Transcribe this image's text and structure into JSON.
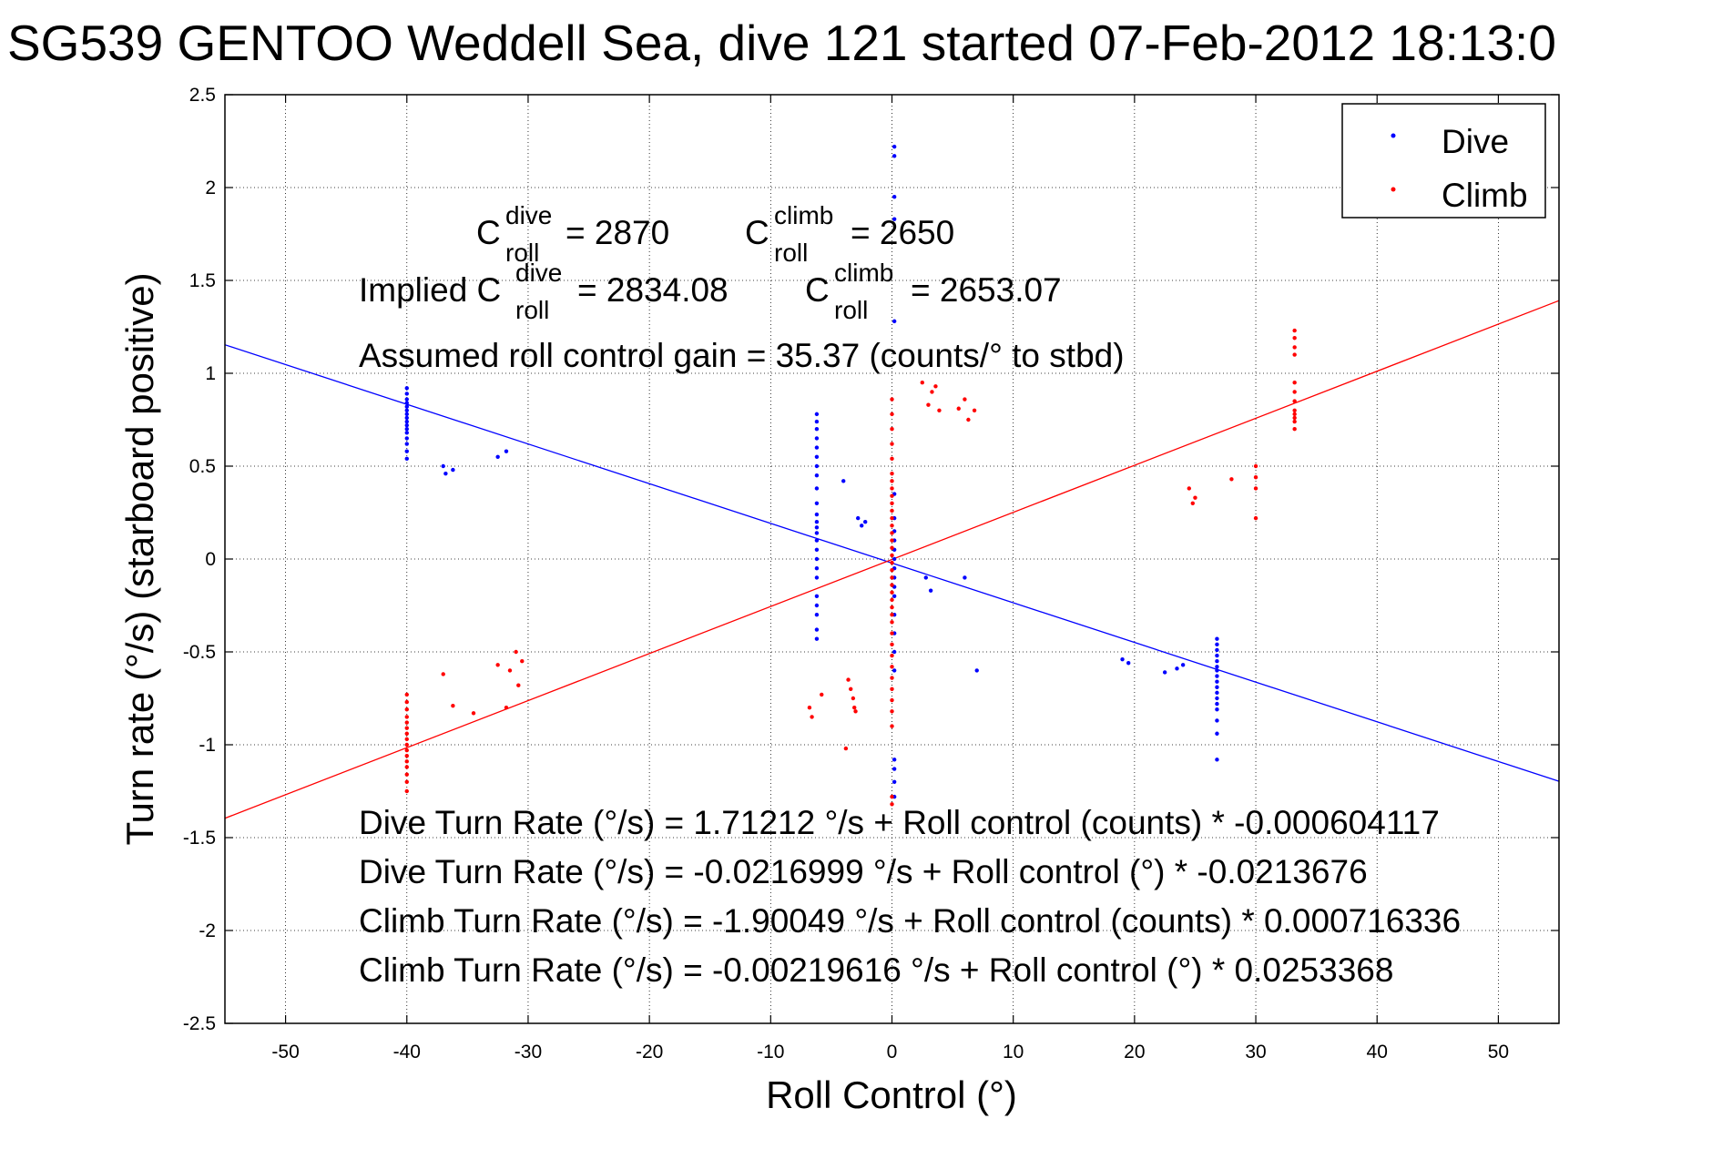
{
  "chart_data": {
    "type": "scatter",
    "title": "SG539 GENTOO Weddell Sea, dive 121 started 07-Feb-2012 18:13:0",
    "xlabel": "Roll Control (°)",
    "ylabel": "Turn rate (°/s)  (starboard positive)",
    "xlim": [
      -55,
      55
    ],
    "ylim": [
      -2.5,
      2.5
    ],
    "xticks": [
      -50,
      -40,
      -30,
      -20,
      -10,
      0,
      10,
      20,
      30,
      40,
      50
    ],
    "yticks": [
      2.5,
      2,
      1.5,
      1,
      0.5,
      0,
      -0.5,
      -1,
      -1.5,
      -2,
      -2.5
    ],
    "xtick_labels": [
      "-50",
      "-40",
      "-30",
      "-20",
      "-10",
      "0",
      "10",
      "20",
      "30",
      "40",
      "50"
    ],
    "ytick_labels": [
      "2.5",
      "2",
      "1.5",
      "1",
      "0.5",
      "0",
      "-0.5",
      "-1",
      "-1.5",
      "-2",
      "-2.5"
    ],
    "grid": true,
    "legend_position": "top-right",
    "series": [
      {
        "name": "Dive",
        "color": "#0000ff",
        "points": [
          [
            -40,
            0.92
          ],
          [
            -40,
            0.89
          ],
          [
            -40,
            0.86
          ],
          [
            -40,
            0.84
          ],
          [
            -40,
            0.82
          ],
          [
            -40,
            0.8
          ],
          [
            -40,
            0.78
          ],
          [
            -40,
            0.76
          ],
          [
            -40,
            0.74
          ],
          [
            -40,
            0.72
          ],
          [
            -40,
            0.7
          ],
          [
            -40,
            0.68
          ],
          [
            -40,
            0.65
          ],
          [
            -40,
            0.62
          ],
          [
            -40,
            0.58
          ],
          [
            -40,
            0.54
          ],
          [
            -37,
            0.5
          ],
          [
            -36.8,
            0.46
          ],
          [
            -36.2,
            0.48
          ],
          [
            -32.5,
            0.55
          ],
          [
            -31.8,
            0.58
          ],
          [
            -6.2,
            0.78
          ],
          [
            -6.2,
            0.74
          ],
          [
            -6.2,
            0.7
          ],
          [
            -6.2,
            0.65
          ],
          [
            -6.2,
            0.6
          ],
          [
            -6.2,
            0.55
          ],
          [
            -6.2,
            0.5
          ],
          [
            -6.2,
            0.45
          ],
          [
            -6.2,
            0.38
          ],
          [
            -6.2,
            0.3
          ],
          [
            -6.2,
            0.24
          ],
          [
            -6.2,
            0.2
          ],
          [
            -6.2,
            0.17
          ],
          [
            -6.2,
            0.14
          ],
          [
            -6.2,
            0.1
          ],
          [
            -6.2,
            0.05
          ],
          [
            -6.2,
            0.0
          ],
          [
            -6.2,
            -0.05
          ],
          [
            -6.2,
            -0.1
          ],
          [
            -6.2,
            -0.2
          ],
          [
            -6.2,
            -0.25
          ],
          [
            -6.2,
            -0.3
          ],
          [
            -6.2,
            -0.38
          ],
          [
            -6.2,
            -0.43
          ],
          [
            -4,
            0.42
          ],
          [
            -2.8,
            0.22
          ],
          [
            -2.5,
            0.18
          ],
          [
            -2.2,
            0.2
          ],
          [
            0.2,
            2.22
          ],
          [
            0.2,
            2.17
          ],
          [
            0.2,
            1.95
          ],
          [
            0.2,
            1.83
          ],
          [
            0.2,
            1.28
          ],
          [
            0.2,
            0.35
          ],
          [
            0.2,
            0.22
          ],
          [
            0.2,
            0.15
          ],
          [
            0.2,
            0.1
          ],
          [
            0.2,
            0.05
          ],
          [
            0.2,
            0.0
          ],
          [
            0.2,
            -0.05
          ],
          [
            0.2,
            -0.1
          ],
          [
            0.2,
            -0.15
          ],
          [
            0.2,
            -0.2
          ],
          [
            0.2,
            -0.3
          ],
          [
            0.2,
            -0.4
          ],
          [
            0.2,
            -0.5
          ],
          [
            0.2,
            -0.6
          ],
          [
            0.2,
            -1.08
          ],
          [
            0.2,
            -1.13
          ],
          [
            0.2,
            -1.2
          ],
          [
            0.2,
            -1.28
          ],
          [
            2.8,
            -0.1
          ],
          [
            3.2,
            -0.17
          ],
          [
            6,
            -0.1
          ],
          [
            7,
            -0.6
          ],
          [
            19,
            -0.54
          ],
          [
            19.5,
            -0.56
          ],
          [
            22.5,
            -0.61
          ],
          [
            23.5,
            -0.59
          ],
          [
            24,
            -0.57
          ],
          [
            26.8,
            -0.43
          ],
          [
            26.8,
            -0.46
          ],
          [
            26.8,
            -0.49
          ],
          [
            26.8,
            -0.52
          ],
          [
            26.8,
            -0.55
          ],
          [
            26.8,
            -0.58
          ],
          [
            26.8,
            -0.6
          ],
          [
            26.8,
            -0.63
          ],
          [
            26.8,
            -0.66
          ],
          [
            26.8,
            -0.69
          ],
          [
            26.8,
            -0.72
          ],
          [
            26.8,
            -0.75
          ],
          [
            26.8,
            -0.78
          ],
          [
            26.8,
            -0.81
          ],
          [
            26.8,
            -0.87
          ],
          [
            26.8,
            -0.94
          ],
          [
            26.8,
            -1.08
          ]
        ]
      },
      {
        "name": "Climb",
        "color": "#ff0000",
        "points": [
          [
            -40,
            -0.73
          ],
          [
            -40,
            -0.77
          ],
          [
            -40,
            -0.81
          ],
          [
            -40,
            -0.85
          ],
          [
            -40,
            -0.88
          ],
          [
            -40,
            -0.91
          ],
          [
            -40,
            -0.94
          ],
          [
            -40,
            -0.97
          ],
          [
            -40,
            -1.0
          ],
          [
            -40,
            -1.03
          ],
          [
            -40,
            -1.06
          ],
          [
            -40,
            -1.09
          ],
          [
            -40,
            -1.12
          ],
          [
            -40,
            -1.16
          ],
          [
            -40,
            -1.2
          ],
          [
            -40,
            -1.25
          ],
          [
            -37,
            -0.62
          ],
          [
            -36.2,
            -0.79
          ],
          [
            -34.5,
            -0.83
          ],
          [
            -32.5,
            -0.57
          ],
          [
            -31.8,
            -0.8
          ],
          [
            -31.5,
            -0.6
          ],
          [
            -31,
            -0.5
          ],
          [
            -30.8,
            -0.68
          ],
          [
            -30.5,
            -0.55
          ],
          [
            -6.8,
            -0.8
          ],
          [
            -6.6,
            -0.85
          ],
          [
            -5.8,
            -0.73
          ],
          [
            -3.8,
            -1.02
          ],
          [
            -3.6,
            -0.65
          ],
          [
            -3.4,
            -0.7
          ],
          [
            -3.2,
            -0.75
          ],
          [
            -3.1,
            -0.8
          ],
          [
            -3,
            -0.82
          ],
          [
            0,
            0.86
          ],
          [
            0,
            0.78
          ],
          [
            0,
            0.7
          ],
          [
            0,
            0.62
          ],
          [
            0,
            0.54
          ],
          [
            0,
            0.46
          ],
          [
            0,
            0.42
          ],
          [
            0,
            0.38
          ],
          [
            0,
            0.34
          ],
          [
            0,
            0.3
          ],
          [
            0,
            0.26
          ],
          [
            0,
            0.22
          ],
          [
            0,
            0.18
          ],
          [
            0,
            0.14
          ],
          [
            0,
            0.1
          ],
          [
            0,
            0.06
          ],
          [
            0,
            0.02
          ],
          [
            0,
            -0.02
          ],
          [
            0,
            -0.06
          ],
          [
            0,
            -0.1
          ],
          [
            0,
            -0.14
          ],
          [
            0,
            -0.18
          ],
          [
            0,
            -0.22
          ],
          [
            0,
            -0.26
          ],
          [
            0,
            -0.3
          ],
          [
            0,
            -0.34
          ],
          [
            0,
            -0.4
          ],
          [
            0,
            -0.46
          ],
          [
            0,
            -0.52
          ],
          [
            0,
            -0.58
          ],
          [
            0,
            -0.64
          ],
          [
            0,
            -0.7
          ],
          [
            0,
            -0.76
          ],
          [
            0,
            -0.82
          ],
          [
            0,
            -0.9
          ],
          [
            0,
            -1.28
          ],
          [
            0,
            -1.32
          ],
          [
            2.5,
            0.95
          ],
          [
            3,
            0.83
          ],
          [
            3.3,
            0.9
          ],
          [
            3.6,
            0.93
          ],
          [
            3.9,
            0.8
          ],
          [
            5.5,
            0.81
          ],
          [
            6,
            0.86
          ],
          [
            6.3,
            0.75
          ],
          [
            6.8,
            0.8
          ],
          [
            24.5,
            0.38
          ],
          [
            24.8,
            0.3
          ],
          [
            25,
            0.33
          ],
          [
            28,
            0.43
          ],
          [
            30,
            0.5
          ],
          [
            30,
            0.44
          ],
          [
            30,
            0.38
          ],
          [
            30,
            0.22
          ],
          [
            33.2,
            1.23
          ],
          [
            33.2,
            1.19
          ],
          [
            33.2,
            1.14
          ],
          [
            33.2,
            1.1
          ],
          [
            33.2,
            0.95
          ],
          [
            33.2,
            0.9
          ],
          [
            33.2,
            0.85
          ],
          [
            33.2,
            0.8
          ],
          [
            33.2,
            0.78
          ],
          [
            33.2,
            0.76
          ],
          [
            33.2,
            0.74
          ],
          [
            33.2,
            0.7
          ]
        ]
      }
    ],
    "fit_lines": [
      {
        "name": "Dive fit",
        "color": "#0000ff",
        "intercept": -0.0216999,
        "slope": -0.0213676
      },
      {
        "name": "Climb fit",
        "color": "#ff0000",
        "intercept": -0.00219616,
        "slope": 0.0253368
      }
    ],
    "annotations": {
      "c_roll_dive": {
        "base": "C",
        "sup": "dive",
        "sub": "roll",
        "rest": "= 2870"
      },
      "c_roll_climb": {
        "base": "C",
        "sup": "climb",
        "sub": "roll",
        "rest": "= 2650"
      },
      "implied_dive": {
        "prefix": "Implied C",
        "sup": "dive",
        "sub": "roll",
        "rest": "= 2834.08"
      },
      "implied_climb": {
        "base": "C",
        "sup": "climb",
        "sub": "roll",
        "rest": "= 2653.07"
      },
      "gain": "Assumed roll control gain = 35.37 (counts/° to stbd)",
      "eq1": "Dive Turn Rate (°/s) = 1.71212 °/s + Roll control (counts) * -0.000604117",
      "eq2": "Dive Turn Rate (°/s) = -0.0216999 °/s + Roll control (°) * -0.0213676",
      "eq3": "Climb Turn Rate (°/s) = -1.90049 °/s + Roll control (counts) * 0.000716336",
      "eq4": "Climb Turn Rate (°/s) = -0.00219616 °/s + Roll control (°) * 0.0253368"
    }
  }
}
